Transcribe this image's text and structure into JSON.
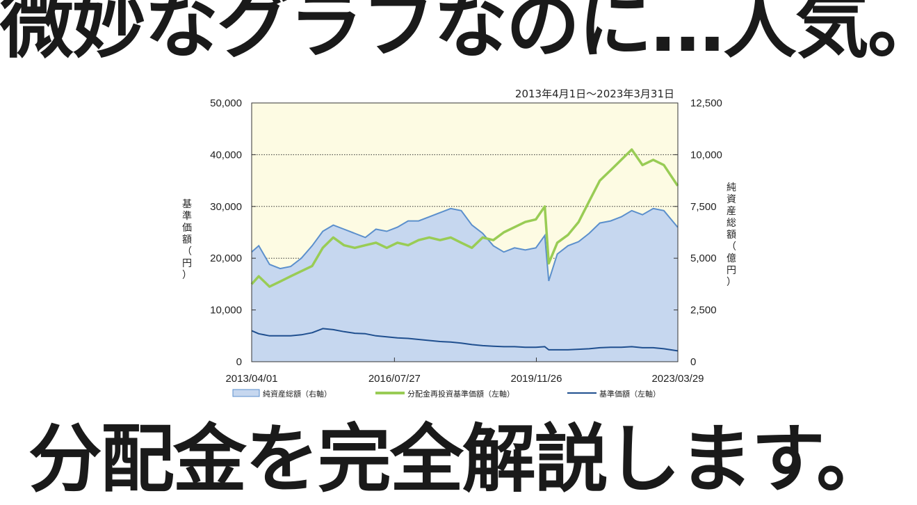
{
  "headline_top": "微妙なグラフなのに…人気。",
  "headline_bottom": "分配金を完全解説します。",
  "chart_data": {
    "type": "line",
    "period": "2013年4月1日～2023年3月31日",
    "xlabel": "",
    "ylabel_left": "基準価額（円）",
    "ylabel_right": "純資産総額（億円）",
    "x_ticks": [
      "2013/04/01",
      "2016/07/27",
      "2019/11/26",
      "2023/03/29"
    ],
    "x_range": [
      "2013/04/01",
      "2023/03/31"
    ],
    "y_left_ticks": [
      "0",
      "10,000",
      "20,000",
      "30,000",
      "40,000",
      "50,000"
    ],
    "y_right_ticks": [
      "0",
      "2,500",
      "5,000",
      "7,500",
      "10,000",
      "12,500"
    ],
    "ylim_left": [
      0,
      50000
    ],
    "ylim_right": [
      0,
      12500
    ],
    "grid": "dotted horizontal at 20,000 / 30,000 / 40,000",
    "legend_position": "bottom",
    "colors": {
      "plot_background": "#fdfbe3",
      "area_fill": "#c6d7ef",
      "area_line": "#5b8fcc",
      "reinvested_line": "#99cc55",
      "nav_line": "#1f4f8f"
    },
    "series": [
      {
        "name": "純資産総額（右軸）",
        "axis": "right",
        "kind": "area",
        "x": [
          "2013/04/01",
          "2013/06/01",
          "2013/09/01",
          "2013/12/01",
          "2014/03/01",
          "2014/06/01",
          "2014/09/01",
          "2014/12/01",
          "2015/03/01",
          "2015/06/01",
          "2015/09/01",
          "2015/12/01",
          "2016/03/01",
          "2016/06/01",
          "2016/09/01",
          "2016/12/01",
          "2017/03/01",
          "2017/06/01",
          "2017/09/01",
          "2017/12/01",
          "2018/03/01",
          "2018/06/01",
          "2018/09/01",
          "2018/12/01",
          "2019/03/01",
          "2019/06/01",
          "2019/09/01",
          "2019/12/01",
          "2020/02/15",
          "2020/03/20",
          "2020/06/01",
          "2020/09/01",
          "2020/12/01",
          "2021/03/01",
          "2021/06/01",
          "2021/09/01",
          "2021/12/01",
          "2022/03/01",
          "2022/06/01",
          "2022/09/01",
          "2022/12/01",
          "2023/03/29"
        ],
        "values": [
          5300,
          5600,
          4700,
          4500,
          4600,
          5000,
          5600,
          6300,
          6600,
          6400,
          6200,
          6000,
          6400,
          6300,
          6500,
          6800,
          6800,
          7000,
          7200,
          7400,
          7300,
          6600,
          6200,
          5600,
          5300,
          5500,
          5400,
          5500,
          6100,
          3900,
          5200,
          5600,
          5800,
          6200,
          6700,
          6800,
          7000,
          7300,
          7100,
          7400,
          7300,
          6500
        ]
      },
      {
        "name": "分配金再投資基準価額（左軸）",
        "axis": "left",
        "kind": "line",
        "x": [
          "2013/04/01",
          "2013/06/01",
          "2013/09/01",
          "2013/12/01",
          "2014/03/01",
          "2014/06/01",
          "2014/09/01",
          "2014/12/01",
          "2015/03/01",
          "2015/06/01",
          "2015/09/01",
          "2015/12/01",
          "2016/03/01",
          "2016/06/01",
          "2016/09/01",
          "2016/12/01",
          "2017/03/01",
          "2017/06/01",
          "2017/09/01",
          "2017/12/01",
          "2018/03/01",
          "2018/06/01",
          "2018/09/01",
          "2018/12/01",
          "2019/03/01",
          "2019/06/01",
          "2019/09/01",
          "2019/12/01",
          "2020/02/15",
          "2020/03/20",
          "2020/06/01",
          "2020/09/01",
          "2020/12/01",
          "2021/03/01",
          "2021/06/01",
          "2021/09/01",
          "2021/12/01",
          "2022/03/01",
          "2022/06/01",
          "2022/09/01",
          "2022/12/01",
          "2023/03/29"
        ],
        "values": [
          15000,
          16500,
          14500,
          15500,
          16500,
          17500,
          18500,
          22000,
          24000,
          22500,
          22000,
          22500,
          23000,
          22000,
          23000,
          22500,
          23500,
          24000,
          23500,
          24000,
          23000,
          22000,
          24000,
          23500,
          25000,
          26000,
          27000,
          27500,
          30000,
          19000,
          23000,
          24500,
          27000,
          31000,
          35000,
          37000,
          39000,
          41000,
          38000,
          39000,
          38000,
          34000
        ]
      },
      {
        "name": "基準価額（左軸）",
        "axis": "left",
        "kind": "line",
        "x": [
          "2013/04/01",
          "2013/06/01",
          "2013/09/01",
          "2013/12/01",
          "2014/03/01",
          "2014/06/01",
          "2014/09/01",
          "2014/12/01",
          "2015/03/01",
          "2015/06/01",
          "2015/09/01",
          "2015/12/01",
          "2016/03/01",
          "2016/06/01",
          "2016/09/01",
          "2016/12/01",
          "2017/03/01",
          "2017/06/01",
          "2017/09/01",
          "2017/12/01",
          "2018/03/01",
          "2018/06/01",
          "2018/09/01",
          "2018/12/01",
          "2019/03/01",
          "2019/06/01",
          "2019/09/01",
          "2019/12/01",
          "2020/02/15",
          "2020/03/20",
          "2020/06/01",
          "2020/09/01",
          "2020/12/01",
          "2021/03/01",
          "2021/06/01",
          "2021/09/01",
          "2021/12/01",
          "2022/03/01",
          "2022/06/01",
          "2022/09/01",
          "2022/12/01",
          "2023/03/29"
        ],
        "values": [
          6000,
          5400,
          5000,
          5000,
          5000,
          5200,
          5600,
          6400,
          6200,
          5800,
          5500,
          5400,
          5000,
          4800,
          4600,
          4500,
          4300,
          4100,
          3900,
          3800,
          3600,
          3300,
          3100,
          3000,
          2900,
          2900,
          2800,
          2800,
          2900,
          2300,
          2300,
          2300,
          2400,
          2500,
          2700,
          2800,
          2800,
          2900,
          2700,
          2700,
          2500,
          2100
        ]
      }
    ]
  }
}
